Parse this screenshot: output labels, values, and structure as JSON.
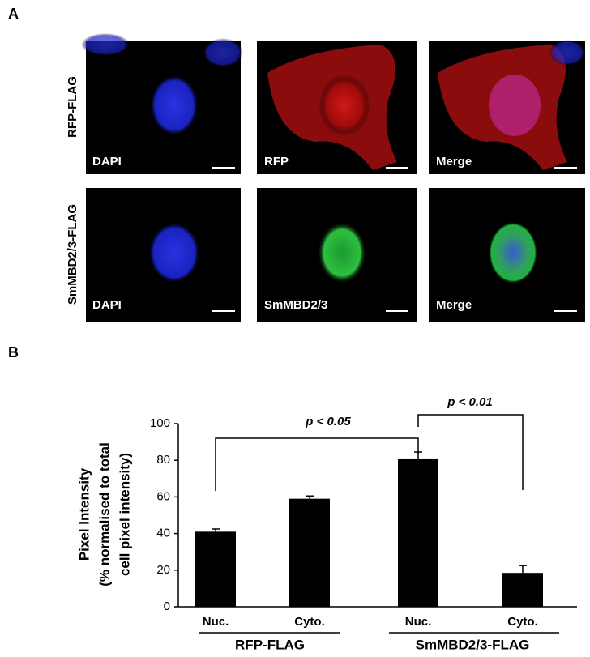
{
  "panel_a": {
    "label": "A",
    "rows": [
      {
        "label": "RFP-FLAG",
        "images": [
          "DAPI",
          "RFP",
          "Merge"
        ]
      },
      {
        "label": "SmMBD2/3-FLAG",
        "images": [
          "DAPI",
          "SmMBD2/3",
          "Merge"
        ]
      }
    ]
  },
  "panel_b_label": "B",
  "chart_data": {
    "type": "bar",
    "ylabel": [
      "Pixel Intensity",
      "(% normalised to total",
      "cell pixel intensity)"
    ],
    "categories": [
      "Nuc.",
      "Cyto.",
      "Nuc.",
      "Cyto."
    ],
    "groups": [
      "RFP-FLAG",
      "SmMBD2/3-FLAG"
    ],
    "values": [
      41,
      59,
      81,
      18.5
    ],
    "errors": [
      1.5,
      1.5,
      3.5,
      4
    ],
    "color": "#000000",
    "ylim": [
      0,
      100
    ],
    "yticks": [
      0,
      20,
      40,
      60,
      80,
      100
    ],
    "annotations": [
      "p < 0.05",
      "p < 0.01"
    ]
  }
}
